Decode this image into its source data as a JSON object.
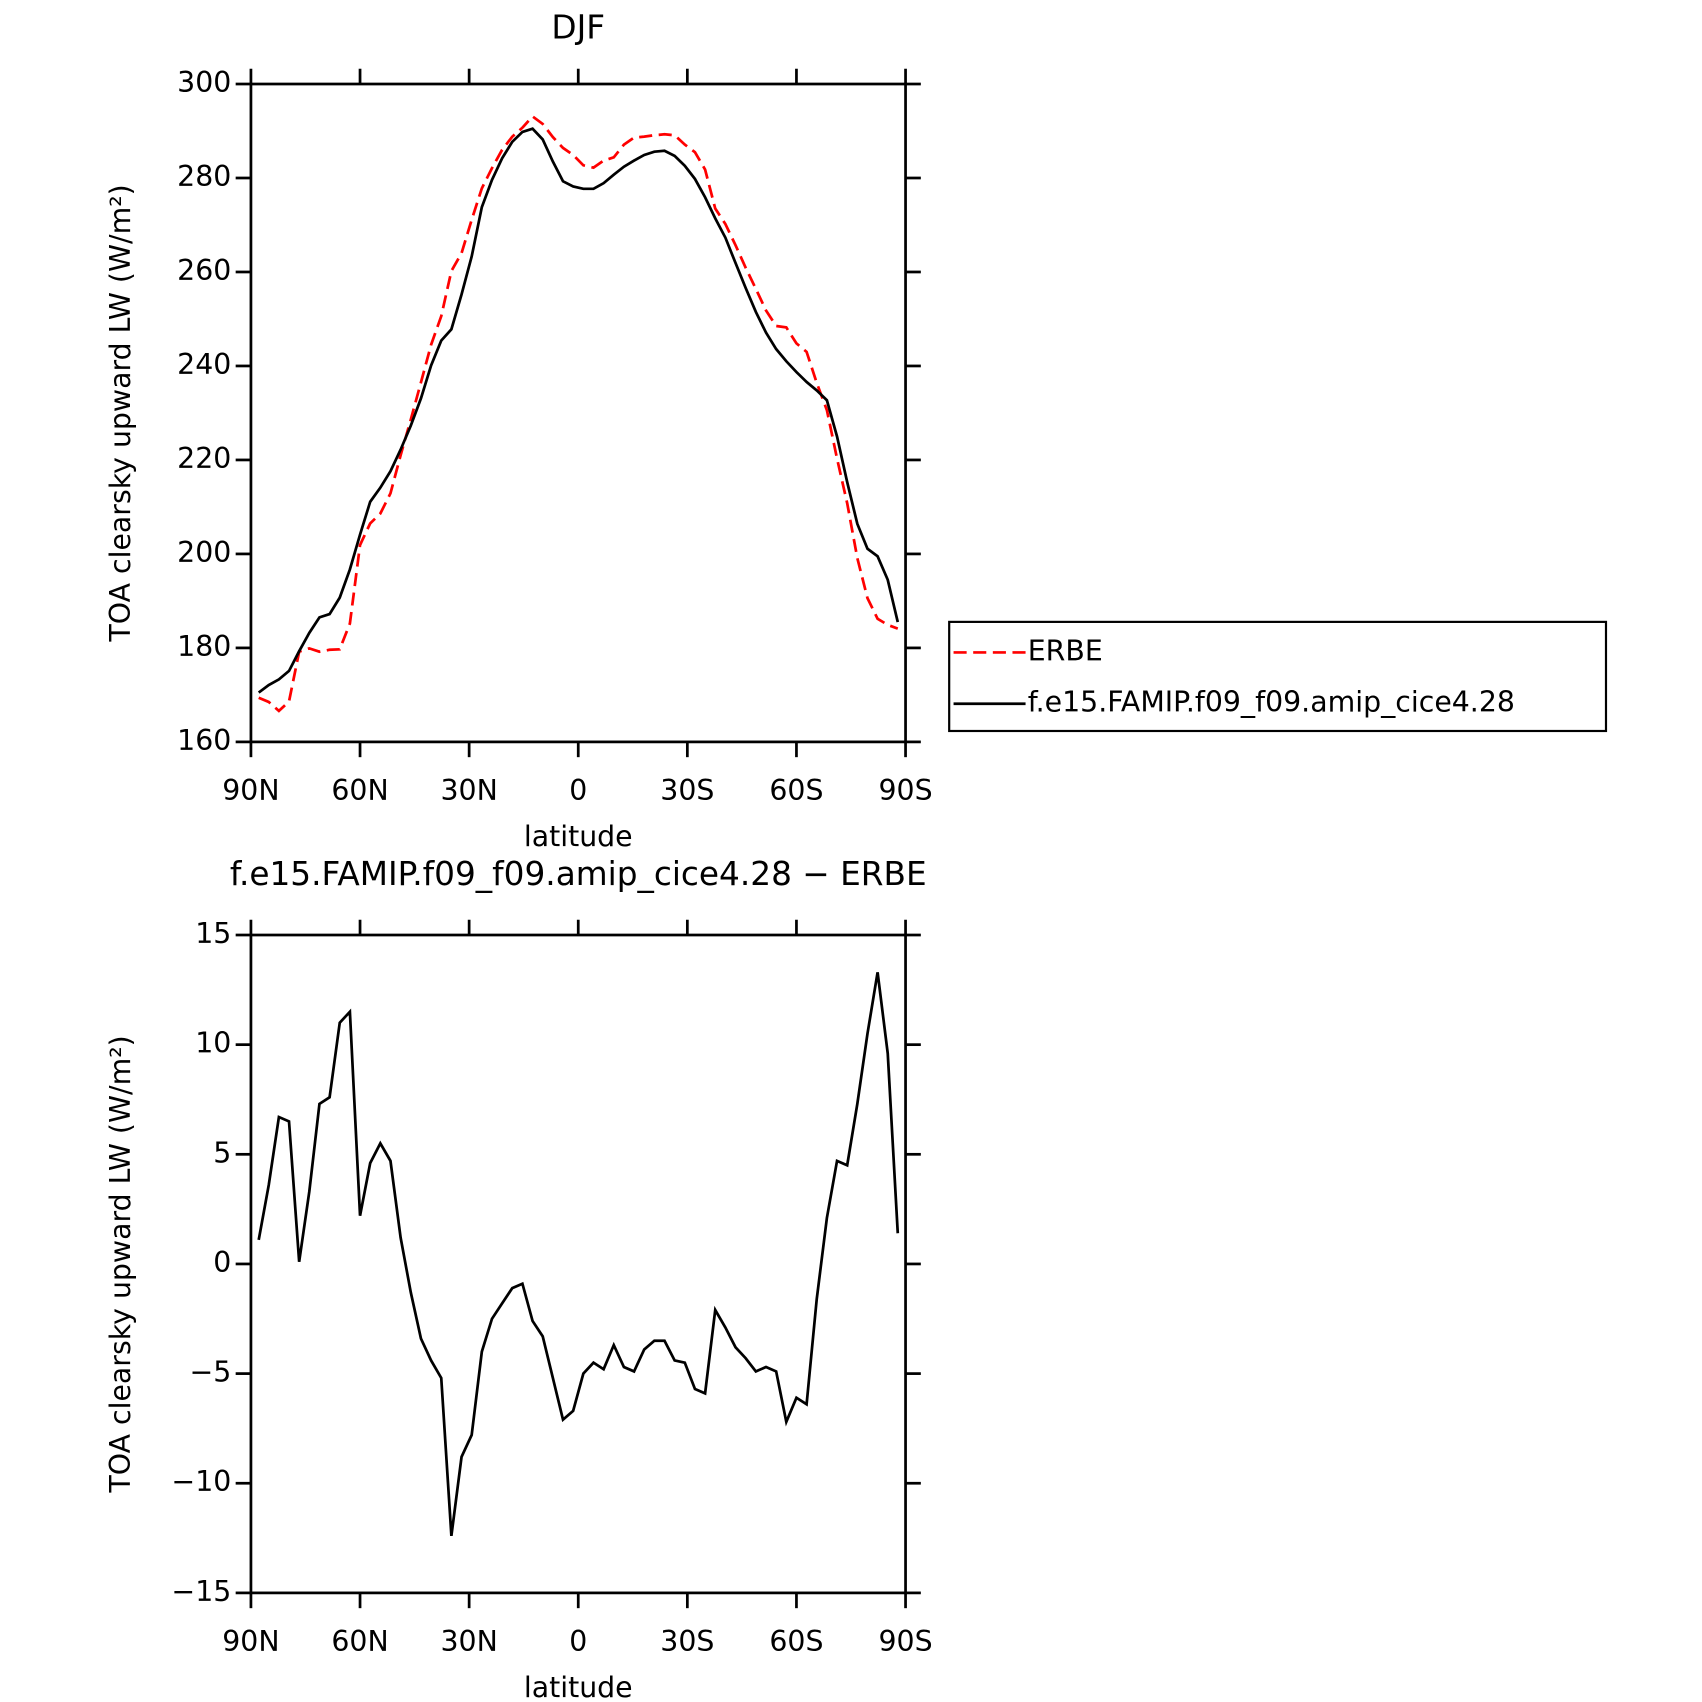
{
  "chart_data": [
    {
      "type": "line",
      "title": "DJF",
      "x_label": "latitude",
      "y_label": "TOA clearsky upward LW (W/m²)",
      "x": [
        87.86,
        85.1,
        82.31,
        79.53,
        76.74,
        73.95,
        71.16,
        68.37,
        65.58,
        62.79,
        60.0,
        57.21,
        54.42,
        51.63,
        48.84,
        46.04,
        43.25,
        40.46,
        37.67,
        34.88,
        32.09,
        29.3,
        26.51,
        23.72,
        20.93,
        18.14,
        15.35,
        12.56,
        9.77,
        6.98,
        4.19,
        1.4,
        -1.4,
        -4.19,
        -6.98,
        -9.77,
        -12.56,
        -15.35,
        -18.14,
        -20.93,
        -23.72,
        -26.51,
        -29.3,
        -32.09,
        -34.88,
        -37.67,
        -40.46,
        -43.25,
        -46.04,
        -48.84,
        -51.63,
        -54.42,
        -57.21,
        -60.0,
        -62.79,
        -65.58,
        -68.37,
        -71.16,
        -73.95,
        -76.74,
        -79.53,
        -82.31,
        -85.1,
        -87.86
      ],
      "series": [
        {
          "name": "ERBE",
          "color": "#ff0000",
          "line_style": "dashed",
          "values": [
            169.4,
            168.5,
            166.6,
            168.6,
            179.2,
            179.9,
            179.2,
            179.6,
            179.7,
            185.2,
            201.9,
            206.5,
            208.6,
            212.9,
            221.0,
            228.6,
            236.5,
            244.5,
            250.6,
            260.2,
            264.0,
            271.1,
            277.8,
            282.1,
            286.0,
            288.8,
            290.7,
            293.1,
            291.5,
            288.7,
            286.4,
            284.9,
            282.7,
            282.2,
            283.7,
            284.4,
            287.1,
            288.6,
            288.8,
            289.1,
            289.3,
            289.1,
            287.1,
            285.5,
            281.8,
            273.5,
            270.2,
            265.7,
            260.9,
            256.4,
            251.8,
            248.5,
            248.2,
            244.8,
            243.0,
            236.4,
            230.6,
            220.3,
            210.8,
            199.1,
            190.6,
            186.2,
            184.9,
            184.1
          ]
        },
        {
          "name": "f.e15.FAMIP.f09_f09.amip_cice4.28",
          "color": "#000000",
          "line_style": "solid",
          "values": [
            170.5,
            172.1,
            173.3,
            175.1,
            179.3,
            183.2,
            186.5,
            187.2,
            190.7,
            196.7,
            204.1,
            211.1,
            214.1,
            217.6,
            222.2,
            227.3,
            233.1,
            240.1,
            245.4,
            247.8,
            255.2,
            263.3,
            273.8,
            279.6,
            284.2,
            287.7,
            289.8,
            290.5,
            288.2,
            283.5,
            279.3,
            278.2,
            277.7,
            277.7,
            278.9,
            280.7,
            282.4,
            283.7,
            284.9,
            285.6,
            285.8,
            284.7,
            282.6,
            279.8,
            275.9,
            271.4,
            267.3,
            261.9,
            256.6,
            251.5,
            247.1,
            243.6,
            241.0,
            238.7,
            236.6,
            234.8,
            232.7,
            225.0,
            215.3,
            206.4,
            201.1,
            199.5,
            194.5,
            185.5
          ]
        }
      ],
      "xlim": [
        90,
        -90
      ],
      "xticks": [
        {
          "value": 90,
          "label": "90N"
        },
        {
          "value": 60,
          "label": "60N"
        },
        {
          "value": 30,
          "label": "30N"
        },
        0,
        {
          "value": -30,
          "label": "30S"
        },
        {
          "value": -60,
          "label": "60S"
        },
        {
          "value": -90,
          "label": "90S"
        }
      ],
      "ylim": [
        160,
        300
      ],
      "yticks": [
        160,
        180,
        200,
        220,
        240,
        260,
        280,
        300
      ],
      "legend": "right"
    },
    {
      "type": "line",
      "title": "f.e15.FAMIP.f09_f09.amip_cice4.28 − ERBE",
      "x_label": "latitude",
      "y_label": "TOA clearsky upward LW (W/m²)",
      "x": [
        87.86,
        85.1,
        82.31,
        79.53,
        76.74,
        73.95,
        71.16,
        68.37,
        65.58,
        62.79,
        60.0,
        57.21,
        54.42,
        51.63,
        48.84,
        46.04,
        43.25,
        40.46,
        37.67,
        34.88,
        32.09,
        29.3,
        26.51,
        23.72,
        20.93,
        18.14,
        15.35,
        12.56,
        9.77,
        6.98,
        4.19,
        1.4,
        -1.4,
        -4.19,
        -6.98,
        -9.77,
        -12.56,
        -15.35,
        -18.14,
        -20.93,
        -23.72,
        -26.51,
        -29.3,
        -32.09,
        -34.88,
        -37.67,
        -40.46,
        -43.25,
        -46.04,
        -48.84,
        -51.63,
        -54.42,
        -57.21,
        -60.0,
        -62.79,
        -65.58,
        -68.37,
        -71.16,
        -73.95,
        -76.74,
        -79.53,
        -82.31,
        -85.1,
        -87.86
      ],
      "values": [
        1.1,
        3.6,
        6.7,
        6.5,
        0.1,
        3.3,
        7.3,
        7.6,
        11.0,
        11.5,
        2.2,
        4.6,
        5.5,
        4.7,
        1.2,
        -1.3,
        -3.4,
        -4.4,
        -5.2,
        -12.4,
        -8.8,
        -7.8,
        -4.0,
        -2.5,
        -1.8,
        -1.1,
        -0.9,
        -2.6,
        -3.3,
        -5.2,
        -7.1,
        -6.7,
        -5.0,
        -4.5,
        -4.8,
        -3.7,
        -4.7,
        -4.9,
        -3.9,
        -3.5,
        -3.5,
        -4.4,
        -4.5,
        -5.7,
        -5.9,
        -2.1,
        -2.9,
        -3.8,
        -4.3,
        -4.9,
        -4.7,
        -4.9,
        -7.2,
        -6.1,
        -6.4,
        -1.6,
        2.1,
        4.7,
        4.5,
        7.3,
        10.5,
        13.3,
        9.6,
        1.4
      ],
      "color": "#000000",
      "xlim": [
        90,
        -90
      ],
      "xticks": [
        {
          "value": 90,
          "label": "90N"
        },
        {
          "value": 60,
          "label": "60N"
        },
        {
          "value": 30,
          "label": "30N"
        },
        0,
        {
          "value": -30,
          "label": "30S"
        },
        {
          "value": -60,
          "label": "60S"
        },
        {
          "value": -90,
          "label": "90S"
        }
      ],
      "ylim": [
        -15,
        15
      ],
      "yticks": [
        {
          "value": -15,
          "label": "−15"
        },
        {
          "value": -10,
          "label": "−10"
        },
        {
          "value": -5,
          "label": "−5"
        },
        0,
        5,
        10,
        15
      ]
    }
  ]
}
